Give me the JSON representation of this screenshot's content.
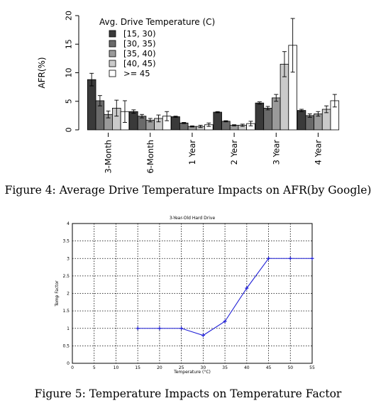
{
  "captions": {
    "fig4": "Figure 4: Average Drive Temperature Impacts on AFR(by Google)",
    "fig5": "Figure 5: Temperature Impacts on Temperature Factor"
  },
  "chart_data": [
    {
      "type": "bar",
      "ylabel": "AFR(%)",
      "ylim": [
        0,
        20
      ],
      "yticks": [
        0,
        5,
        10,
        15,
        20
      ],
      "categories": [
        "3-Month",
        "6-Month",
        "1 Year",
        "2 Year",
        "3 Year",
        "4 Year"
      ],
      "legend": {
        "title": "Avg. Drive Temperature (C)",
        "placement": "top-left"
      },
      "series": [
        {
          "name": "[15, 30)",
          "color": "#3a3a3a",
          "values": [
            8.8,
            3.2,
            2.3,
            3.1,
            4.7,
            3.4
          ],
          "errors": [
            1.1,
            0.3,
            0.1,
            0.1,
            0.2,
            0.2
          ]
        },
        {
          "name": "[30, 35)",
          "color": "#6a6a6a",
          "values": [
            5.1,
            2.4,
            1.2,
            1.5,
            3.8,
            2.5
          ],
          "errors": [
            0.9,
            0.3,
            0.1,
            0.1,
            0.3,
            0.3
          ]
        },
        {
          "name": "[35, 40)",
          "color": "#9a9a9a",
          "values": [
            2.7,
            1.7,
            0.6,
            0.8,
            5.6,
            2.8
          ],
          "errors": [
            0.6,
            0.3,
            0.1,
            0.1,
            0.6,
            0.4
          ]
        },
        {
          "name": "[40, 45)",
          "color": "#cacaca",
          "values": [
            3.8,
            2.0,
            0.6,
            0.8,
            11.5,
            3.6
          ],
          "errors": [
            1.4,
            0.6,
            0.2,
            0.2,
            2.2,
            0.6
          ]
        },
        {
          "name": ">= 45",
          "color": "#ffffff",
          "values": [
            3.2,
            2.4,
            0.9,
            1.1,
            14.8,
            5.1
          ],
          "errors": [
            1.9,
            0.8,
            0.3,
            0.4,
            4.7,
            1.1
          ]
        }
      ]
    },
    {
      "type": "line",
      "title": "3-Year-Old Hard Drive",
      "xlabel": "Temperature (°C)",
      "ylabel": "Temp Factor",
      "xlim": [
        0,
        55
      ],
      "ylim": [
        0,
        4
      ],
      "xticks": [
        0,
        5,
        10,
        15,
        20,
        25,
        30,
        35,
        40,
        45,
        50,
        55
      ],
      "yticks": [
        0,
        0.5,
        1,
        1.5,
        2,
        2.5,
        3,
        3.5,
        4
      ],
      "grid": true,
      "series": [
        {
          "color": "#1f1fd6",
          "x": [
            15,
            20,
            25,
            30,
            35,
            40,
            45,
            50,
            55
          ],
          "y": [
            1,
            1,
            1,
            0.8,
            1.2,
            2.15,
            3,
            3,
            3
          ]
        }
      ]
    }
  ]
}
